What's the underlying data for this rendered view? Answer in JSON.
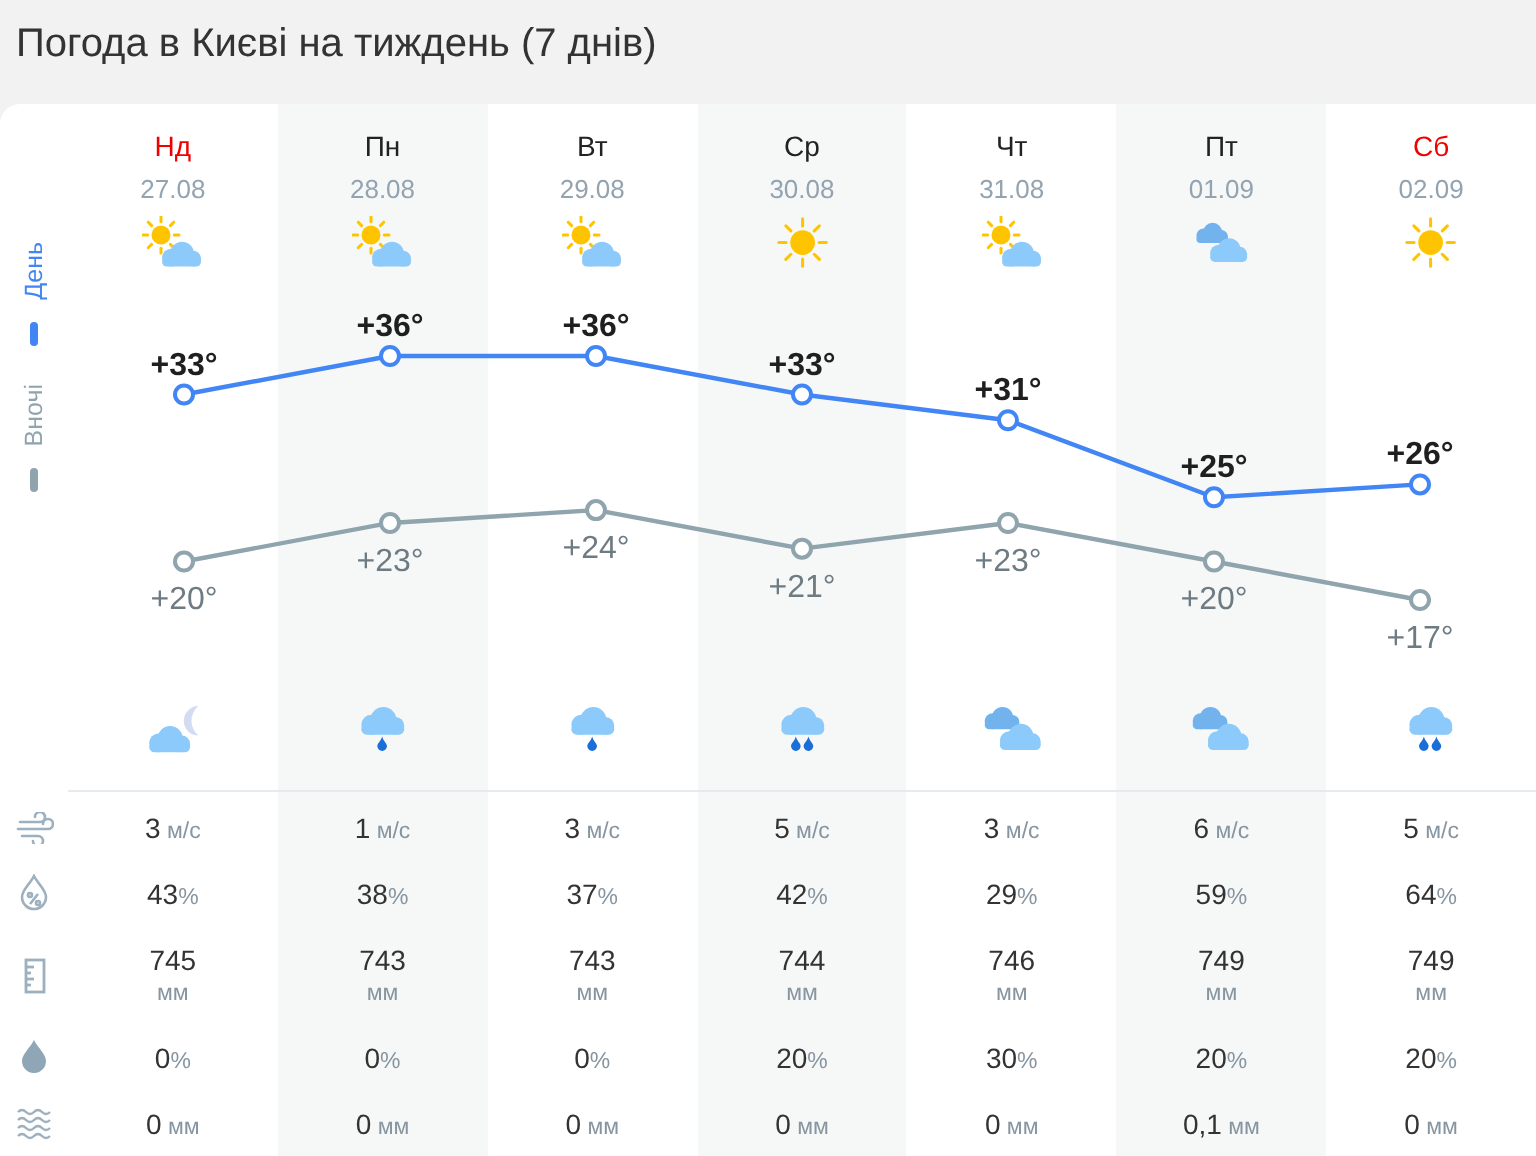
{
  "chart_data": [
    {
      "type": "line",
      "title": "Погода в Києві на тиждень (7 днів)",
      "categories": [
        "Нд\n27.08",
        "Пн\n28.08",
        "Вт\n29.08",
        "Ср\n30.08",
        "Чт\n31.08",
        "Пт\n01.09",
        "Сб\n02.09"
      ],
      "series": [
        {
          "name": "День",
          "color": "#4285f4",
          "values": [
            33,
            36,
            36,
            33,
            31,
            25,
            26
          ],
          "value_labels": [
            "+33°",
            "+36°",
            "+36°",
            "+33°",
            "+31°",
            "+25°",
            "+26°"
          ]
        },
        {
          "name": "Вночі",
          "color": "#90a4ae",
          "values": [
            20,
            23,
            24,
            21,
            23,
            20,
            17
          ],
          "value_labels": [
            "+20°",
            "+23°",
            "+24°",
            "+21°",
            "+23°",
            "+20°",
            "+17°"
          ]
        }
      ],
      "legend": "left",
      "marker": "circle"
    },
    {
      "type": "other",
      "annotations": [
        "3 м/с",
        "1 м/с",
        "3 м/с",
        "5 м/с",
        "3 м/с",
        "6 м/с",
        "5 м/с",
        "43%",
        "38%",
        "37%",
        "42%",
        "29%",
        "59%",
        "64%",
        "745\nмм",
        "743\nмм",
        "743\nмм",
        "744\nмм",
        "746\nмм",
        "749\nмм",
        "749\nмм",
        "0%",
        "0%",
        "0%",
        "20%",
        "30%",
        "20%",
        "20%",
        "0 мм",
        "0 мм",
        "0 мм",
        "0 мм",
        "0 мм",
        "0,1 мм",
        "0 мм"
      ]
    }
  ]
}
